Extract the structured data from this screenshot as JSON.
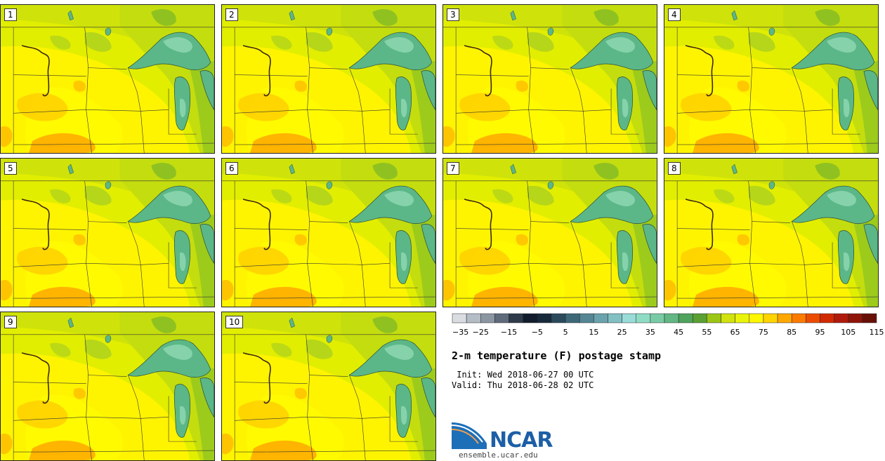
{
  "panels": [
    {
      "label": "1"
    },
    {
      "label": "2"
    },
    {
      "label": "3"
    },
    {
      "label": "4"
    },
    {
      "label": "5"
    },
    {
      "label": "6"
    },
    {
      "label": "7"
    },
    {
      "label": "8"
    },
    {
      "label": "9"
    },
    {
      "label": "10"
    }
  ],
  "colorbar": {
    "colors": [
      "#d9dde2",
      "#b4bcc6",
      "#8c96a3",
      "#5f6b7b",
      "#2f3a4a",
      "#111c2c",
      "#162a3c",
      "#2a4a5c",
      "#3d6878",
      "#548694",
      "#6aa3ad",
      "#82c0c4",
      "#99dcd8",
      "#8fdcc4",
      "#79cba5",
      "#62b784",
      "#4fa35c",
      "#5aa032",
      "#9cc614",
      "#d1e20e",
      "#eaf40a",
      "#fff700",
      "#ffd400",
      "#ffa800",
      "#fb7a00",
      "#ec4c00",
      "#d22a00",
      "#b01a0c",
      "#8e1408",
      "#681008"
    ],
    "tick_labels": [
      "−35",
      "−25",
      "−15",
      "−5",
      "5",
      "15",
      "25",
      "35",
      "45",
      "55",
      "65",
      "75",
      "85",
      "95",
      "105",
      "115"
    ]
  },
  "title": "2-m temperature (F) postage stamp",
  "init": " Init: Wed 2018-06-27 00 UTC",
  "valid": "Valid: Thu 2018-06-28 02 UTC",
  "logo": {
    "name": "NCAR",
    "url": "ensemble.ucar.edu"
  },
  "map_colors": {
    "base": "#e4ef00",
    "warm": "#fff500",
    "hot": "#ffbe00",
    "cool": "#b9d90a",
    "cooler": "#8fc21a",
    "lake": "#5cb888",
    "lake_light": "#86d2aa",
    "lines": "#333333"
  }
}
